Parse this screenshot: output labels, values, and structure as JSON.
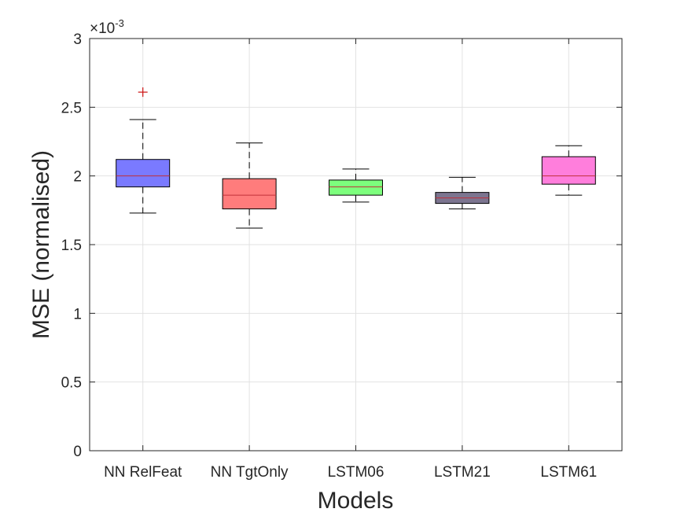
{
  "chart_data": {
    "type": "box",
    "xlabel": "Models",
    "ylabel": "MSE (normalised)",
    "exponent_label": "×10",
    "exponent_power": "-3",
    "ylim": [
      0,
      3
    ],
    "yticks": [
      0,
      0.5,
      1,
      1.5,
      2,
      2.5,
      3
    ],
    "ytick_labels": [
      "0",
      "0.5",
      "1",
      "1.5",
      "2",
      "2.5",
      "3"
    ],
    "grid": true,
    "categories": [
      "NN RelFeat",
      "NN TgtOnly",
      "LSTM06",
      "LSTM21",
      "LSTM61"
    ],
    "boxes": [
      {
        "name": "NN RelFeat",
        "whisker_low": 1.73,
        "q1": 1.92,
        "median": 2.0,
        "q3": 2.12,
        "whisker_high": 2.41,
        "outliers": [
          2.61
        ],
        "color": "#7a7aff"
      },
      {
        "name": "NN TgtOnly",
        "whisker_low": 1.62,
        "q1": 1.76,
        "median": 1.86,
        "q3": 1.98,
        "whisker_high": 2.24,
        "outliers": [],
        "color": "#ff7c7c"
      },
      {
        "name": "LSTM06",
        "whisker_low": 1.81,
        "q1": 1.86,
        "median": 1.92,
        "q3": 1.97,
        "whisker_high": 2.05,
        "outliers": [],
        "color": "#7dff7d"
      },
      {
        "name": "LSTM21",
        "whisker_low": 1.76,
        "q1": 1.8,
        "median": 1.84,
        "q3": 1.88,
        "whisker_high": 1.99,
        "outliers": [],
        "color": "#7c7590"
      },
      {
        "name": "LSTM61",
        "whisker_low": 1.86,
        "q1": 1.94,
        "median": 2.0,
        "q3": 2.14,
        "whisker_high": 2.22,
        "outliers": [],
        "color": "#ff7edc"
      }
    ],
    "median_color": "#c0303a",
    "outlier_color": "#cc1111"
  }
}
